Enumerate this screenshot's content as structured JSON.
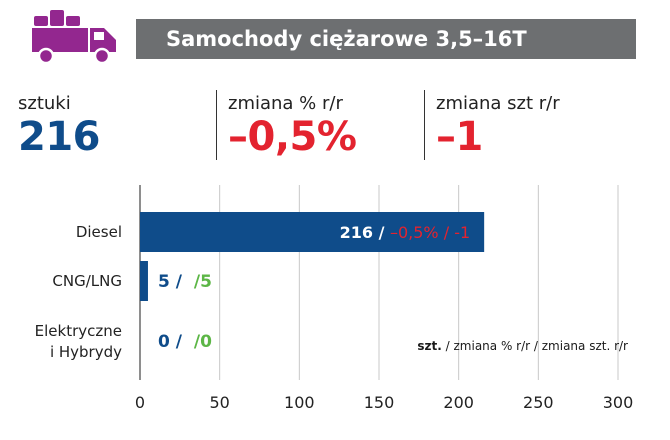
{
  "header": {
    "title": "Samochody ciężarowe 3,5–16T",
    "icon": "truck-icon",
    "icon_color": "#93278f"
  },
  "stats": [
    {
      "label": "sztuki",
      "value": "216",
      "color": "#0f4c8a"
    },
    {
      "label": "zmiana % r/r",
      "value": "–0,5%",
      "color": "#e3232f"
    },
    {
      "label": "zmiana szt r/r",
      "value": "–1",
      "color": "#e3232f"
    }
  ],
  "chart_data": {
    "type": "bar",
    "orientation": "horizontal",
    "categories": [
      [
        "Diesel"
      ],
      [
        "CNG/LNG"
      ],
      [
        "Elektryczne",
        "i Hybrydy"
      ]
    ],
    "values": [
      216,
      5,
      0
    ],
    "annotations": [
      {
        "units": "216",
        "sep1": " / ",
        "pct": "–0,5%",
        "sep2": " / ",
        "abs": "-1"
      },
      {
        "units": "5",
        "sep1": " / ",
        "abs": "/5"
      },
      {
        "units": "0",
        "sep1": " / ",
        "abs": "/0"
      }
    ],
    "xlim": [
      0,
      300
    ],
    "xticks": [
      "0",
      "50",
      "100",
      "150",
      "200",
      "250",
      "300"
    ],
    "grid": true,
    "legend_note": {
      "bold": "szt.",
      "rest": " / zmiana % r/r / zmiana szt. r/r"
    },
    "colors": {
      "bar": "#0f4c8a",
      "negative": "#e3232f",
      "positive": "#5cb646",
      "grid": "#c8c8c8"
    }
  }
}
